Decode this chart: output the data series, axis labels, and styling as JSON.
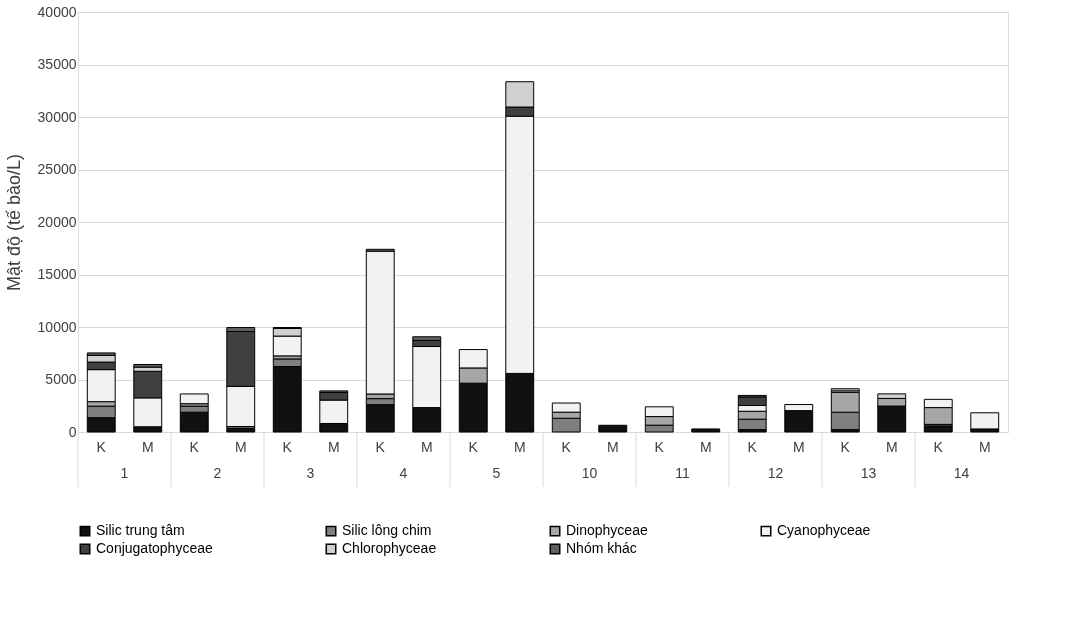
{
  "chart_data": {
    "type": "bar",
    "stacked": true,
    "ylabel": "Mật độ (tế bào/L)",
    "categories": [
      "K",
      "M",
      "K",
      "M",
      "K",
      "M",
      "K",
      "M",
      "K",
      "M",
      "K",
      "M",
      "K",
      "M",
      "K",
      "M",
      "K",
      "M",
      "K",
      "M"
    ],
    "annotations": [
      "1",
      "2",
      "3",
      "4",
      "5",
      "10",
      "11",
      "12",
      "13",
      "14"
    ],
    "series": [
      {
        "name": "Silic trung tâm",
        "color": "#111111",
        "values": [
          1360,
          500,
          1885,
          350,
          6235,
          810,
          2600,
          2325,
          4650,
          5580,
          null,
          640,
          null,
          290,
          230,
          2035,
          230,
          2470,
          580,
          290
        ]
      },
      {
        "name": "Silic lông chim",
        "color": "#7f7f7f",
        "values": [
          1100,
          null,
          580,
          170,
          725,
          null,
          580,
          null,
          null,
          null,
          1310,
          null,
          650,
          null,
          990,
          null,
          1655,
          null,
          145,
          null
        ]
      },
      {
        "name": "Dinophyceae",
        "color": "#a6a6a6",
        "values": [
          430,
          null,
          230,
          null,
          290,
          null,
          440,
          null,
          1450,
          null,
          580,
          null,
          820,
          null,
          755,
          null,
          1890,
          725,
          1600,
          null
        ]
      },
      {
        "name": "Cyanophyceae",
        "color": "#f2f2f2",
        "values": [
          3050,
          2750,
          930,
          3830,
          1885,
          2230,
          13600,
          5815,
          1750,
          24500,
          870,
          null,
          930,
          null,
          550,
          580,
          145,
          null,
          785,
          1540
        ]
      },
      {
        "name": "Conjugatophyceae",
        "color": "#404040",
        "values": [
          720,
          2530,
          null,
          5220,
          null,
          725,
          null,
          580,
          null,
          870,
          null,
          null,
          null,
          null,
          815,
          null,
          null,
          null,
          null,
          null
        ]
      },
      {
        "name": "Chlorophyceae",
        "color": "#d0d0d0",
        "values": [
          640,
          400,
          null,
          null,
          725,
          null,
          null,
          null,
          null,
          2410,
          null,
          null,
          null,
          null,
          null,
          null,
          200,
          435,
          null,
          null
        ]
      },
      {
        "name": "Nhóm khác",
        "color": "#606060",
        "values": [
          230,
          250,
          null,
          380,
          90,
          150,
          180,
          350,
          null,
          null,
          null,
          null,
          null,
          null,
          145,
          null,
          null,
          null,
          null,
          null
        ]
      }
    ],
    "ylim": [
      0,
      40000
    ],
    "yticks": [
      0,
      5000,
      10000,
      15000,
      20000,
      25000,
      30000,
      35000,
      40000
    ],
    "grid": "y",
    "legend": "bottom"
  }
}
